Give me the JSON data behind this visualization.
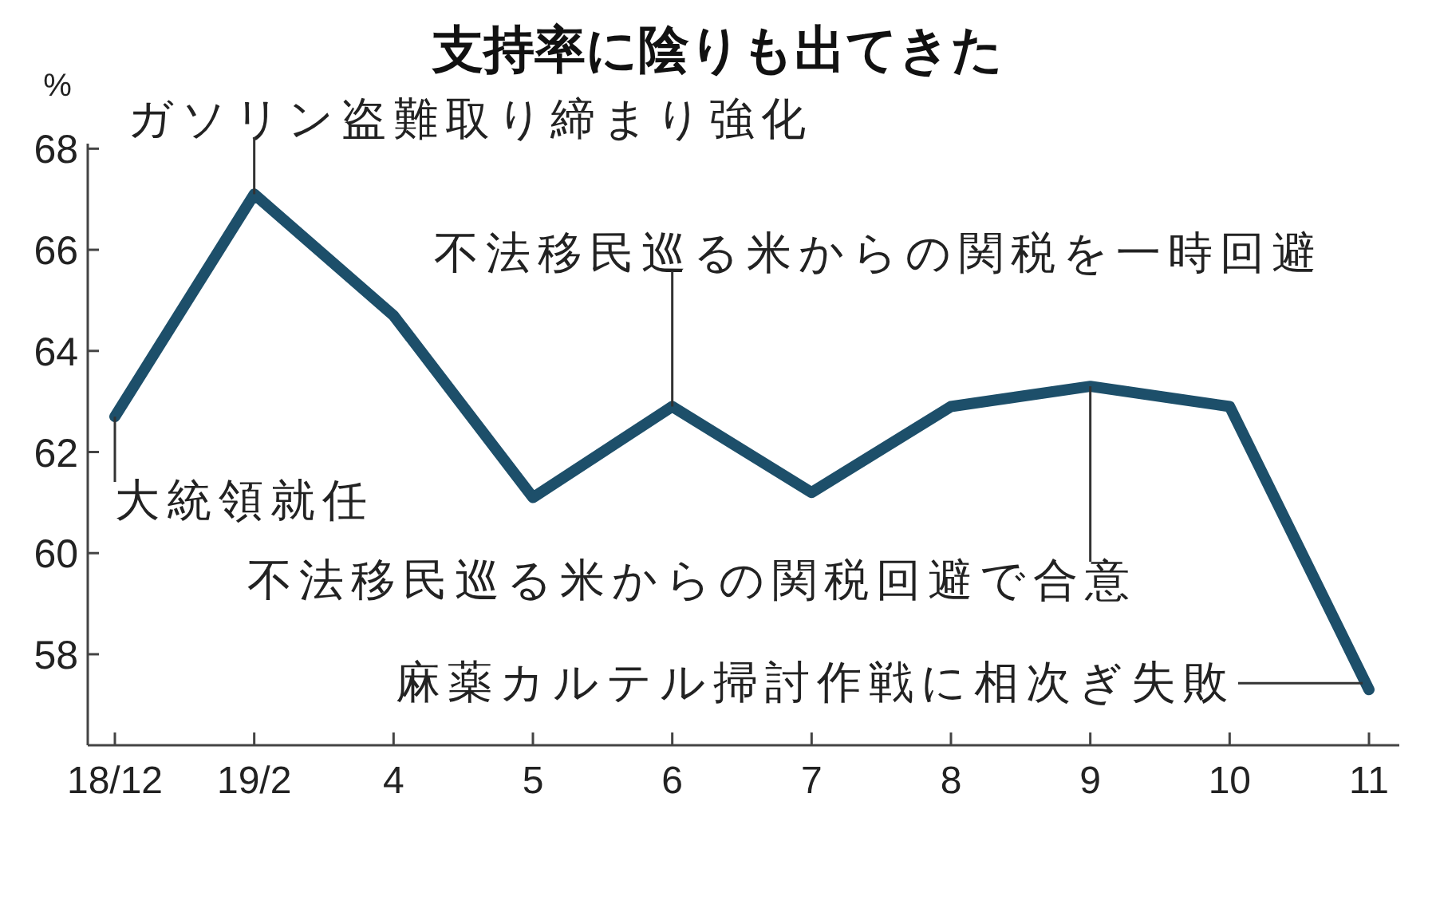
{
  "chart_data": {
    "type": "line",
    "title": "支持率に陰りも出てきた",
    "ylabel": "%",
    "categories": [
      "18/12",
      "19/2",
      "4",
      "5",
      "6",
      "7",
      "8",
      "9",
      "10",
      "11"
    ],
    "series": [
      {
        "color": "#1d4f6a",
        "values": [
          62.7,
          67.1,
          64.7,
          61.1,
          62.9,
          61.2,
          62.9,
          63.3,
          62.9,
          57.3
        ]
      }
    ],
    "ylim": [
      56.2,
      68.1
    ],
    "yticks": [
      58,
      60,
      62,
      64,
      66,
      68
    ],
    "grid": false,
    "marker": "none",
    "line_style": "solid",
    "annotations": [
      {
        "text": "大統領就任",
        "x": "18/12",
        "y": 62.7
      },
      {
        "text": "ガソリン盗難取り締まり強化",
        "x": "19/2",
        "y": 67.1
      },
      {
        "text": "不法移民巡る米からの関税を一時回避",
        "x": "6",
        "y": 62.9
      },
      {
        "text": "不法移民巡る米からの関税回避で合意",
        "x": "9",
        "y": 63.3
      },
      {
        "text": "麻薬カルテル掃討作戦に相次ぎ失敗",
        "x": "11",
        "y": 57.3
      }
    ]
  }
}
